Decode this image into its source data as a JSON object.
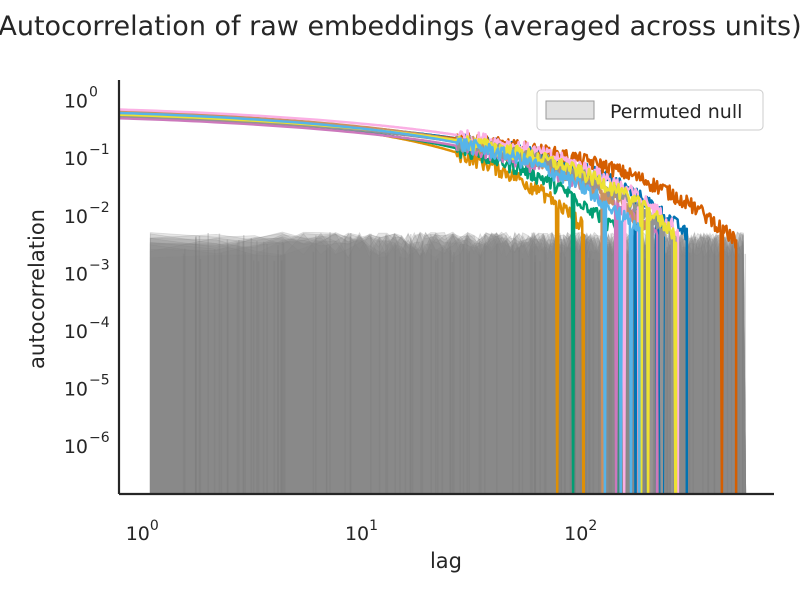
{
  "chart_data": {
    "type": "line",
    "title": "Autocorrelation of raw embeddings (averaged across units)",
    "xlabel": "lag",
    "ylabel": "autocorrelation",
    "xscale": "log",
    "yscale": "log",
    "xlim": [
      0.72,
      700
    ],
    "ylim": [
      1.4e-07,
      2.2
    ],
    "x_ticks": [
      {
        "value": 1,
        "base": "10",
        "exp": "0"
      },
      {
        "value": 10,
        "base": "10",
        "exp": "1"
      },
      {
        "value": 100,
        "base": "10",
        "exp": "2"
      }
    ],
    "y_ticks": [
      {
        "value": 1,
        "base": "10",
        "exp": "0"
      },
      {
        "value": 0.1,
        "base": "10",
        "exp": "−1"
      },
      {
        "value": 0.01,
        "base": "10",
        "exp": "−2"
      },
      {
        "value": 0.001,
        "base": "10",
        "exp": "−3"
      },
      {
        "value": 0.0001,
        "base": "10",
        "exp": "−4"
      },
      {
        "value": 1e-05,
        "base": "10",
        "exp": "−5"
      },
      {
        "value": 1e-06,
        "base": "10",
        "exp": "−6"
      }
    ],
    "grid": false,
    "legend": {
      "placement": "top-right",
      "entries": [
        {
          "label": "Permuted null",
          "color": "#bdbdbd"
        }
      ]
    },
    "null_band": {
      "color": "#808080",
      "upper_level": 0.005,
      "max_lag": 520
    },
    "series": [
      {
        "color": "#0173b2",
        "start": 0.55,
        "end": 280
      },
      {
        "color": "#de8f05",
        "start": 0.58,
        "end": 95
      },
      {
        "color": "#029e73",
        "start": 0.52,
        "end": 135
      },
      {
        "color": "#d55e00",
        "start": 0.48,
        "end": 470
      },
      {
        "color": "#cc78bc",
        "start": 0.46,
        "end": 205
      },
      {
        "color": "#ca9161",
        "start": 0.6,
        "end": 190
      },
      {
        "color": "#fbafe4",
        "start": 0.65,
        "end": 255
      },
      {
        "color": "#949494",
        "start": 0.5,
        "end": 240
      },
      {
        "color": "#ece133",
        "start": 0.53,
        "end": 250
      },
      {
        "color": "#56b4e9",
        "start": 0.57,
        "end": 170
      }
    ]
  }
}
